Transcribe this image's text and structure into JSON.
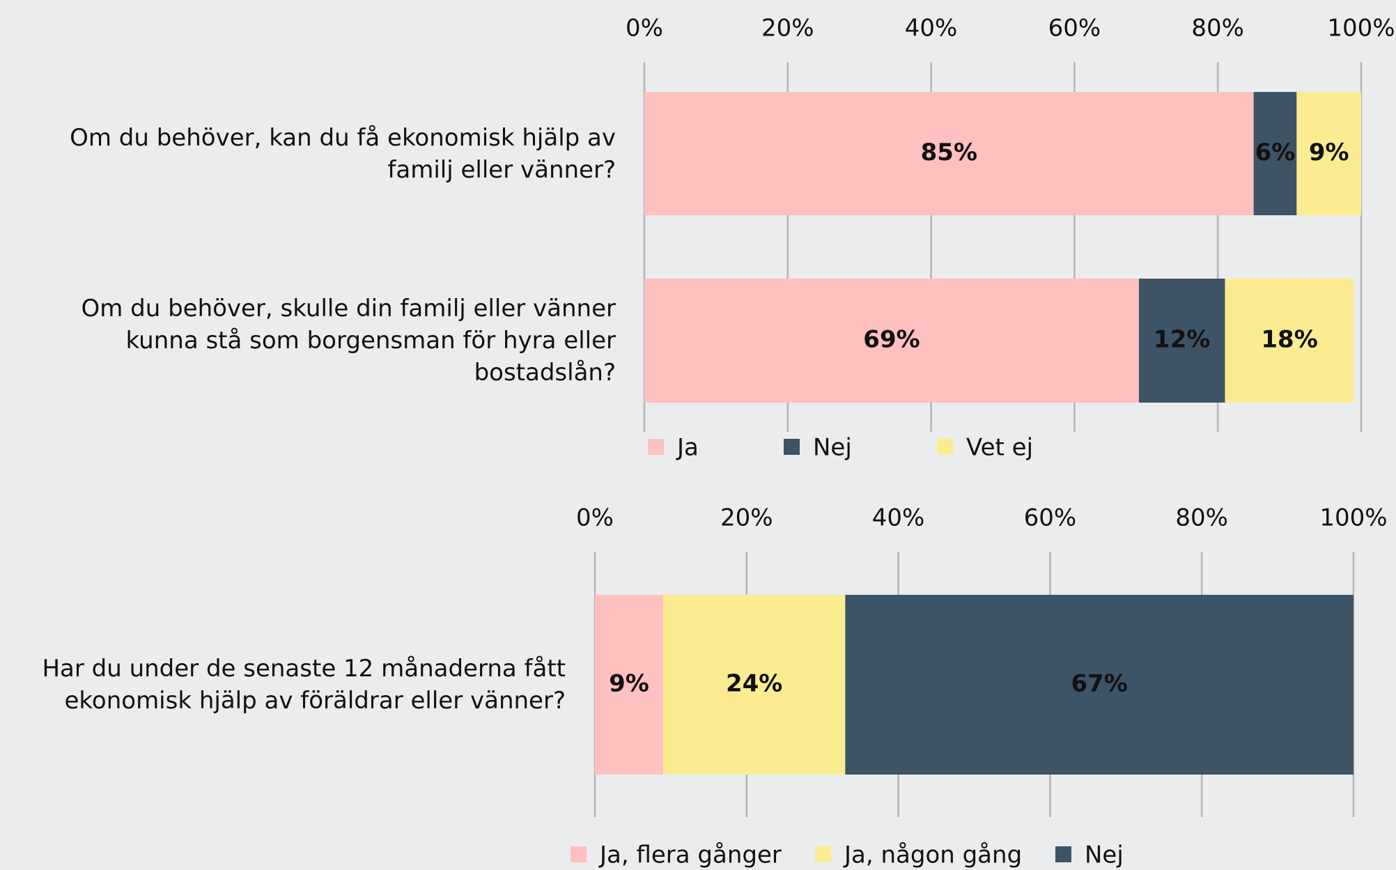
{
  "chart_data": [
    {
      "type": "stacked_bar_horizontal",
      "categories": [
        "Om du behöver, kan du få ekonomisk hjälp av familj eller vänner?",
        "Om du behöver, skulle din familj eller vänner kunna stå som borgensman för hyra eller bostadslån?"
      ],
      "series": [
        {
          "name": "Ja",
          "color": "#ffc0c0",
          "values": [
            85,
            69
          ],
          "value_labels": [
            "85%",
            "69%"
          ]
        },
        {
          "name": "Nej",
          "color": "#3d5466",
          "values": [
            6,
            12
          ],
          "value_labels": [
            "6%",
            "12%"
          ]
        },
        {
          "name": "Vet ej",
          "color": "#fbec91",
          "values": [
            9,
            18
          ],
          "value_labels": [
            "9%",
            "18%"
          ]
        }
      ],
      "xlim": [
        0,
        100
      ],
      "xticks": [
        {
          "value": 0,
          "label": "0%"
        },
        {
          "value": 20,
          "label": "20%"
        },
        {
          "value": 40,
          "label": "40%"
        },
        {
          "value": 60,
          "label": "60%"
        },
        {
          "value": 80,
          "label": "80%"
        },
        {
          "value": 100,
          "label": "100%"
        }
      ],
      "grid": true,
      "legend": "bottom"
    },
    {
      "type": "stacked_bar_horizontal",
      "categories": [
        "Har du under de senaste 12 månaderna fått ekonomisk hjälp av föräldrar eller vänner?"
      ],
      "series": [
        {
          "name": "Ja, flera gånger",
          "color": "#ffc0c0",
          "values": [
            9
          ],
          "value_labels": [
            "9%"
          ]
        },
        {
          "name": "Ja, någon gång",
          "color": "#fbec91",
          "values": [
            24
          ],
          "value_labels": [
            "24%"
          ]
        },
        {
          "name": "Nej",
          "color": "#3d5466",
          "values": [
            67
          ],
          "value_labels": [
            "67%"
          ]
        }
      ],
      "xlim": [
        0,
        100
      ],
      "xticks": [
        {
          "value": 0,
          "label": "0%"
        },
        {
          "value": 20,
          "label": "20%"
        },
        {
          "value": 40,
          "label": "40%"
        },
        {
          "value": 60,
          "label": "60%"
        },
        {
          "value": 80,
          "label": "80%"
        },
        {
          "value": 100,
          "label": "100%"
        }
      ],
      "grid": true,
      "legend": "bottom"
    }
  ]
}
